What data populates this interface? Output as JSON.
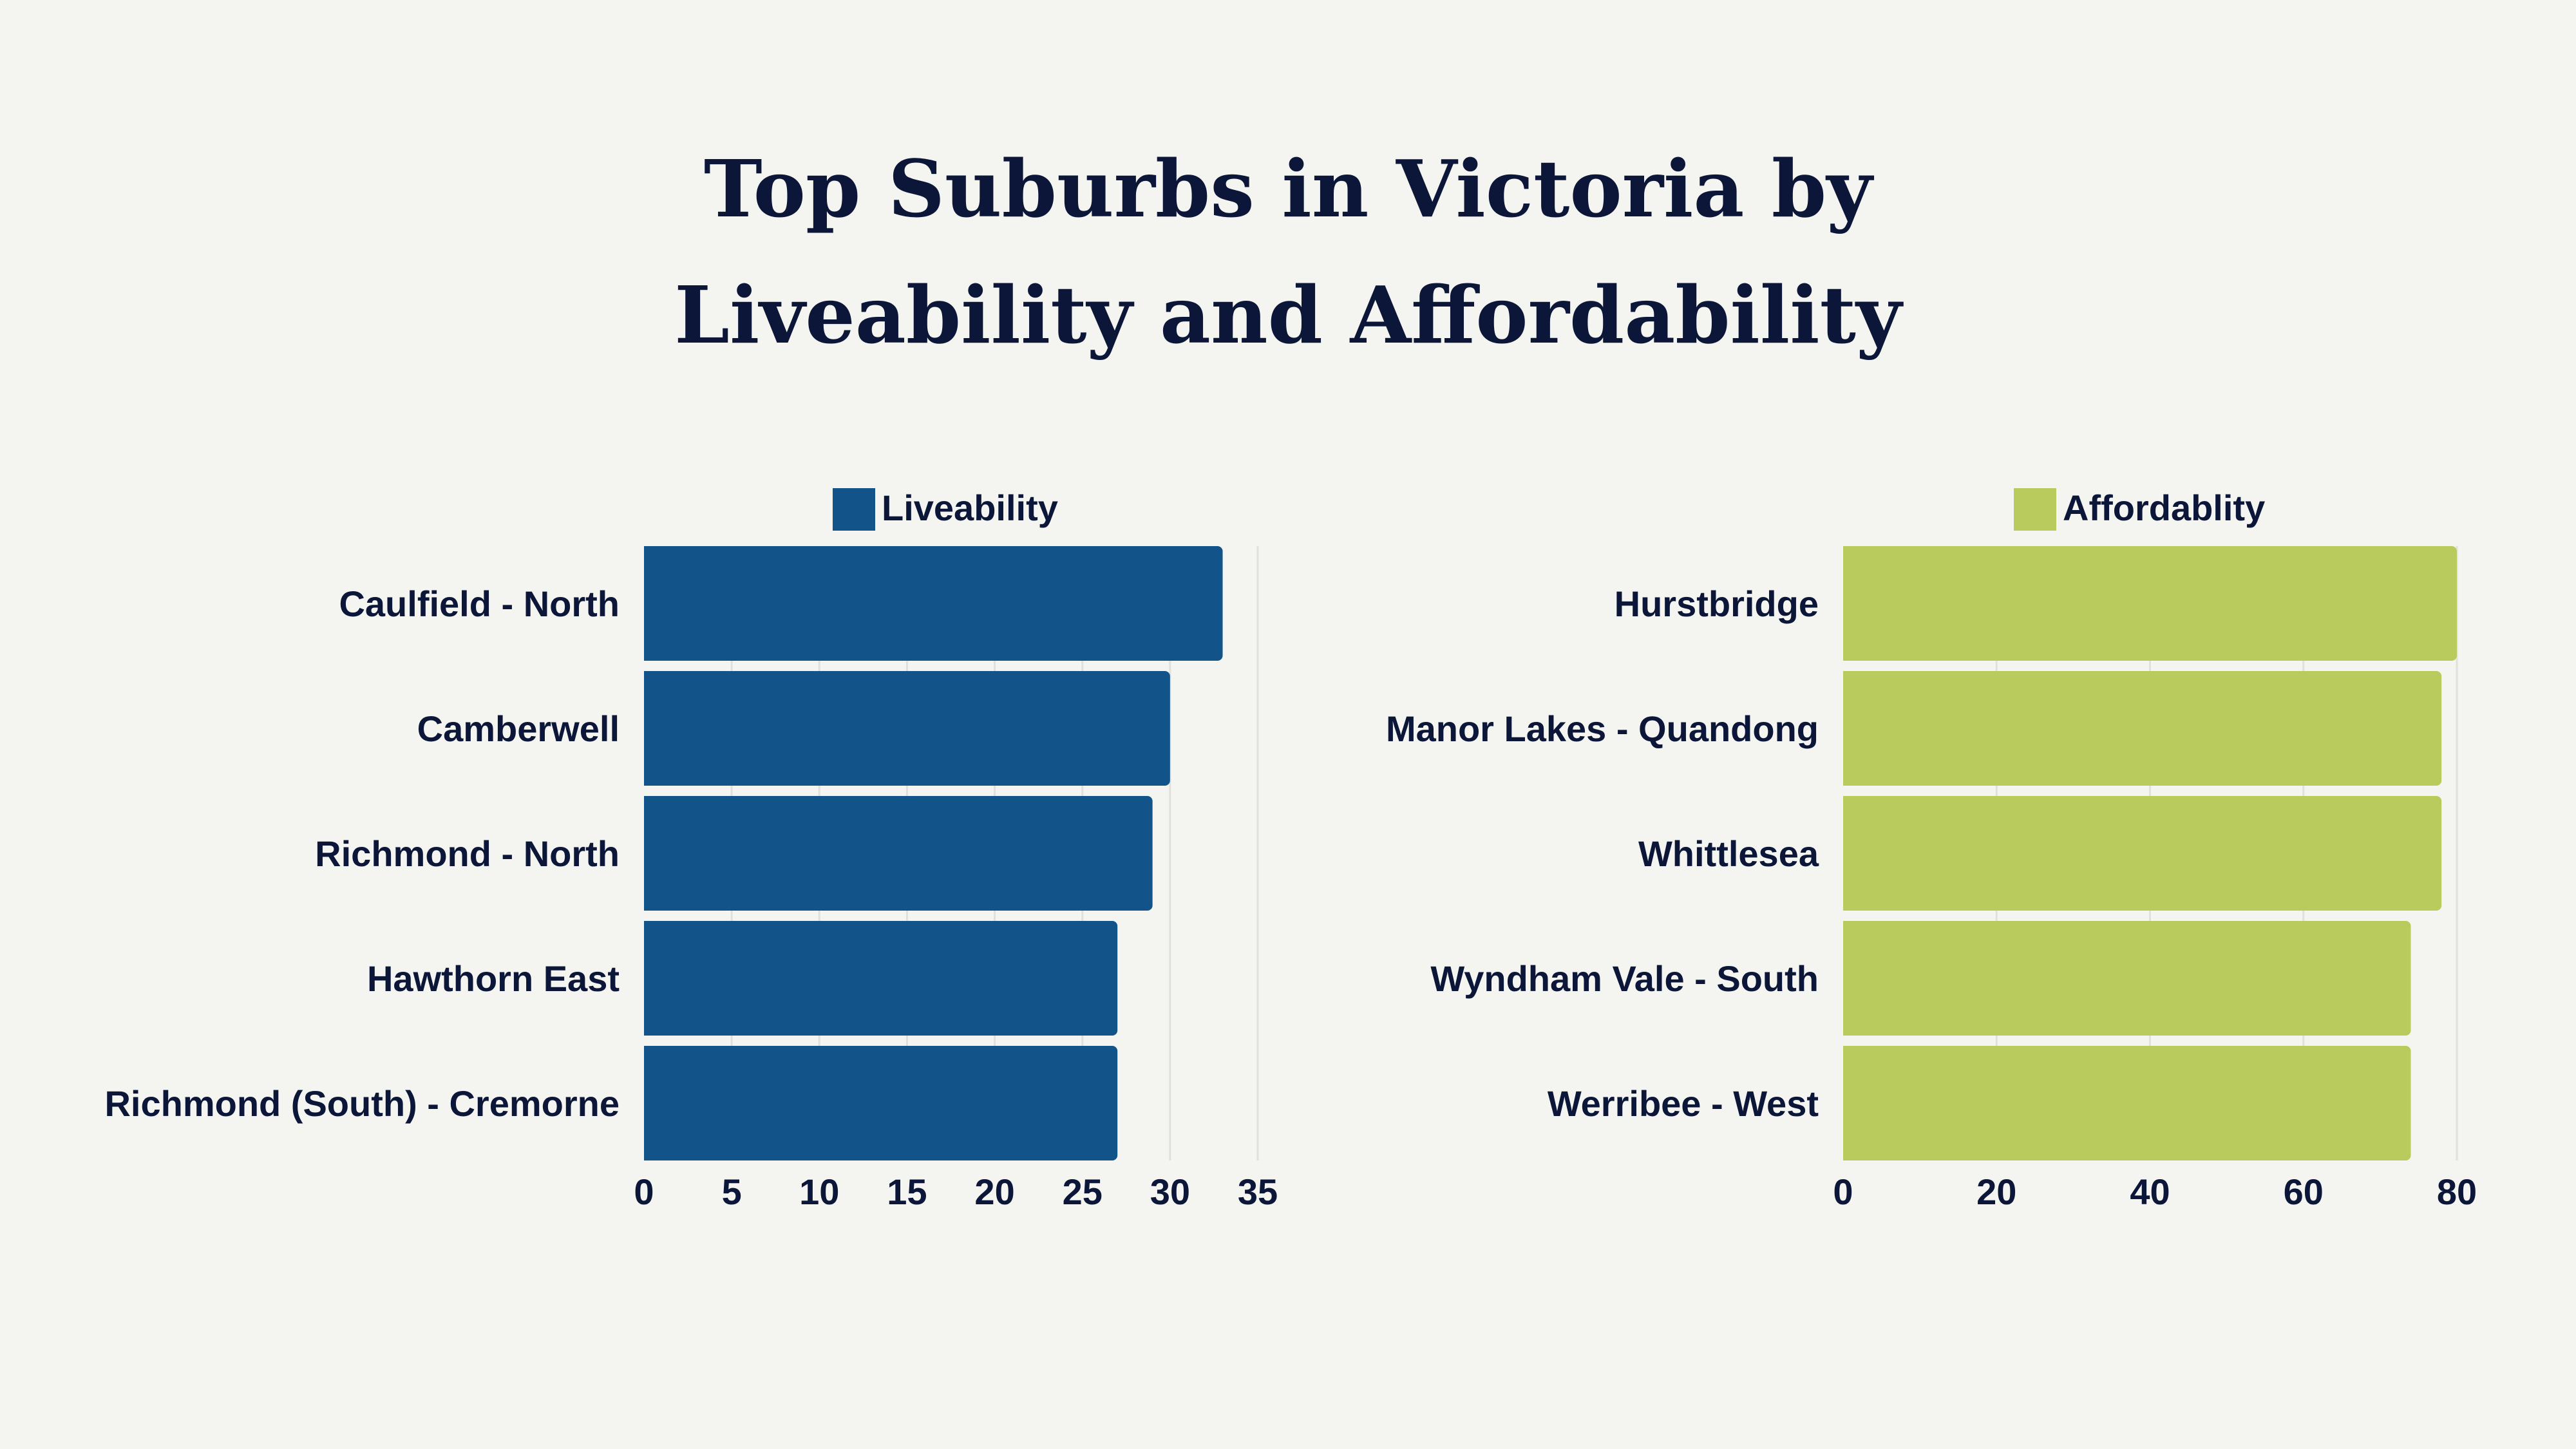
{
  "title_lines": [
    "Top Suburbs in Victoria by",
    "Liveability and Affordability"
  ],
  "chart_data": [
    {
      "type": "bar",
      "orientation": "horizontal",
      "legend_position": "top",
      "grid": true,
      "color": "#12538a",
      "categories": [
        "Caulfield - North",
        "Camberwell",
        "Richmond - North",
        "Hawthorn East",
        "Richmond (South) - Cremorne"
      ],
      "series": [
        {
          "name": "Liveability",
          "values": [
            33,
            30,
            29,
            27,
            27
          ]
        }
      ],
      "xlim": [
        0,
        35
      ],
      "ticks": [
        0,
        5,
        10,
        15,
        20,
        25,
        30,
        35
      ]
    },
    {
      "type": "bar",
      "orientation": "horizontal",
      "legend_position": "top",
      "grid": true,
      "color": "#b9cb5d",
      "categories": [
        "Hurstbridge",
        "Manor Lakes - Quandong",
        "Whittlesea",
        "Wyndham Vale - South",
        "Werribee - West"
      ],
      "series": [
        {
          "name": "Affordablity",
          "values": [
            80,
            78,
            78,
            74,
            74
          ]
        }
      ],
      "xlim": [
        0,
        80
      ],
      "ticks": [
        0,
        20,
        40,
        60,
        80
      ]
    }
  ]
}
